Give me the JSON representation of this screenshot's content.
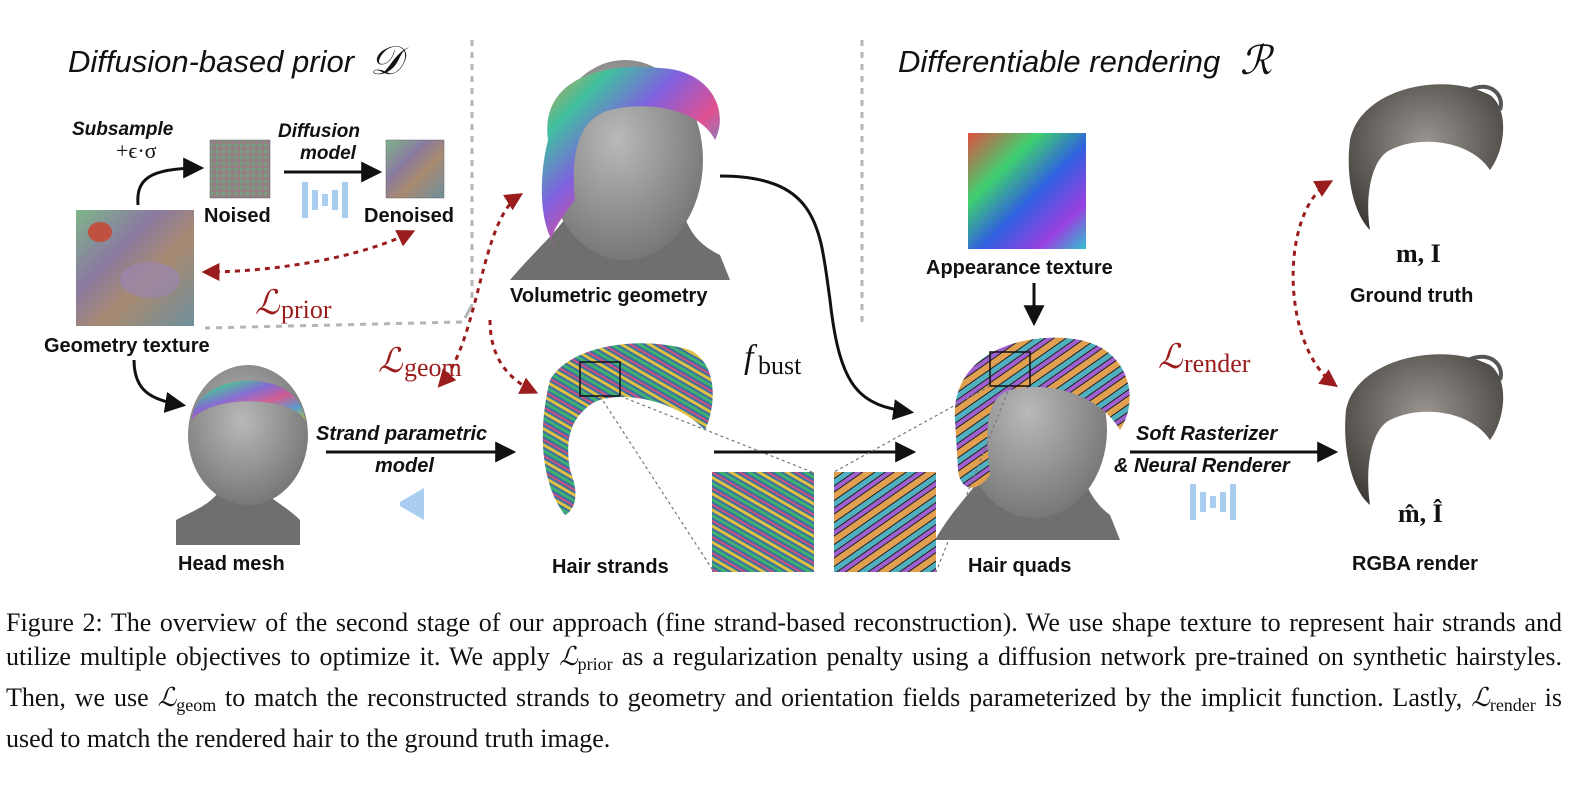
{
  "figure": {
    "sections": {
      "diffusion_title": "Diffusion-based prior",
      "diffusion_symbol": "𝒟",
      "rendering_title": "Differentiable rendering",
      "rendering_symbol": "ℛ"
    },
    "labels": {
      "subsample": "Subsample",
      "noise_formula": "+ϵ·σ",
      "noised": "Noised",
      "diffusion_model_line1": "Diffusion",
      "diffusion_model_line2": "model",
      "denoised": "Denoised",
      "geometry_texture": "Geometry texture",
      "head_mesh": "Head mesh",
      "strand_model_line1": "Strand parametric",
      "strand_model_line2": "model",
      "volumetric_geometry": "Volumetric geometry",
      "hair_strands": "Hair strands",
      "appearance_texture": "Appearance texture",
      "hair_quads": "Hair quads",
      "rasterizer_line1": "Soft Rasterizer",
      "rasterizer_line2": "& Neural Renderer",
      "ground_truth": "Ground truth",
      "rgba_render": "RGBA render",
      "gt_symbols": "m, I",
      "render_symbols": "m̂, Î",
      "f_bust_base": "f",
      "f_bust_sub": "bust"
    },
    "losses": {
      "L": "ℒ",
      "prior": "prior",
      "geom": "geom",
      "render": "render"
    },
    "colors": {
      "loss_red": "#9b1c1c",
      "network_blue": "#a9cdee",
      "divider_gray": "#b5b5b5",
      "head_gray": "#8d8d8d"
    }
  },
  "caption": {
    "part1": "Figure 2: The overview of the second stage of our approach (fine strand-based reconstruction). We use shape texture to represent hair strands and utilize multiple objectives to optimize it. We apply ",
    "L": "ℒ",
    "sub1": "prior",
    "part2": " as a regularization penalty using a diffusion network pre-trained on synthetic hairstyles. Then, we use ",
    "sub2": "geom",
    "part3": " to match the reconstructed strands to geometry and orientation fields parameterized by the implicit function. Lastly, ",
    "sub3": "render",
    "part4": " is used to match the rendered hair to the ground truth image."
  }
}
